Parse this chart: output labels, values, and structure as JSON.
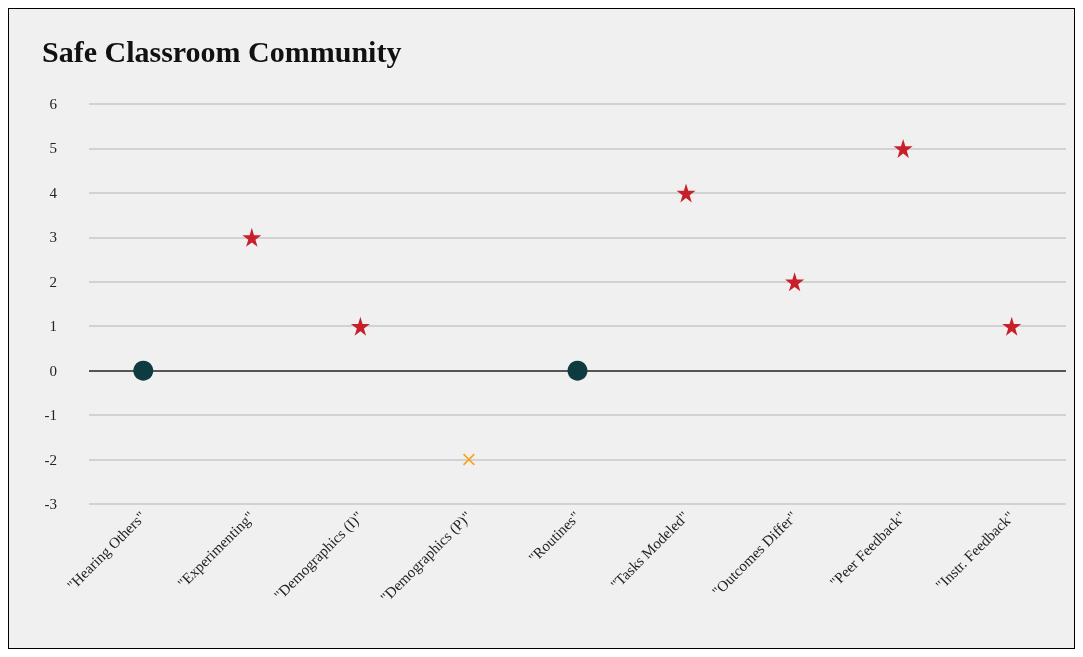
{
  "chart_data": {
    "type": "scatter",
    "title": "Safe Classroom Community",
    "categories": [
      "\"Hearing Others\"",
      "\"Experimenting\"",
      "\"Demographics (I)\"",
      "\"Demographics (P)\"",
      "\"Routines\"",
      "\"Tasks Modeled\"",
      "\"Outcomes Differ\"",
      "\"Peer Feedback\"",
      "\"Instr. Feedback\""
    ],
    "series": [
      {
        "color": "#0e3b40",
        "marker": "circle",
        "values": [
          0,
          null,
          null,
          null,
          0,
          null,
          null,
          null,
          null
        ]
      },
      {
        "color": "#c8202b",
        "marker": "star",
        "values": [
          null,
          3,
          1,
          null,
          null,
          4,
          2,
          5,
          1
        ]
      },
      {
        "color": "#f5a623",
        "marker": "cross",
        "values": [
          null,
          null,
          null,
          -2,
          null,
          null,
          null,
          null,
          null
        ]
      }
    ],
    "ylim": [
      -3,
      6
    ],
    "yticks": [
      -3,
      -2,
      -1,
      0,
      1,
      2,
      3,
      4,
      5,
      6
    ],
    "grid": "y",
    "ref_lines": [
      {
        "axis": "y",
        "value": 0,
        "color": "#555555"
      }
    ]
  }
}
